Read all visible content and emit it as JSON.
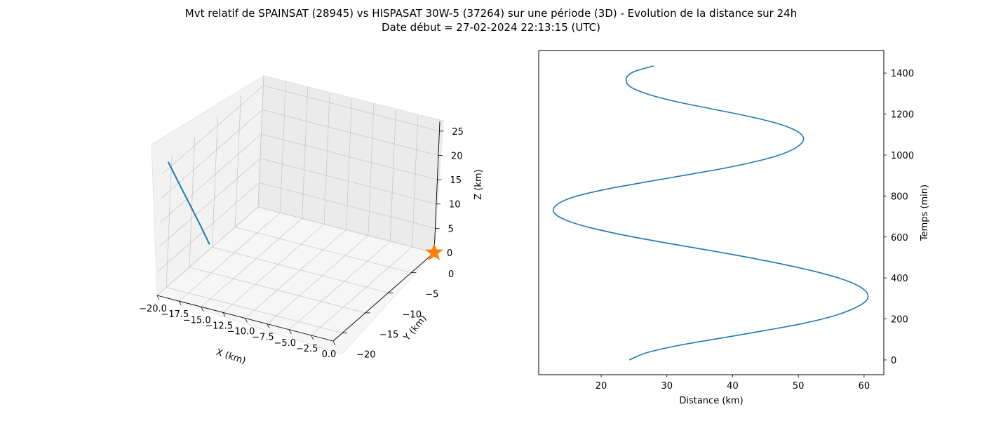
{
  "figure": {
    "title_line1": "Mvt relatif de SPAINSAT (28945) vs HISPASAT 30W-5 (37264) sur une période (3D) - Evolution de la distance sur 24h",
    "title_line2": "Date début = 27-02-2024 22:13:15 (UTC)"
  },
  "chart_data": [
    {
      "type": "line3d",
      "xlabel": "X (km)",
      "ylabel": "Y (km)",
      "zlabel": "Z (km)",
      "xlim": [
        -20,
        0
      ],
      "ylim": [
        -22,
        0
      ],
      "zlim": [
        0,
        27
      ],
      "xticks": [
        "−20.0",
        "−17.5",
        "−15.0",
        "−12.5",
        "−10.0",
        "−7.5",
        "−5.0",
        "−2.5",
        "0.0"
      ],
      "yticks": [
        "0",
        "−5",
        "−10",
        "−15",
        "−20"
      ],
      "zticks": [
        "0",
        "5",
        "10",
        "15",
        "20",
        "25"
      ],
      "series": [
        {
          "points": [
            [
              -20.0,
              -20.8,
              26.5
            ],
            [
              -18.7,
              -20.9,
              23.0
            ],
            [
              -17.3,
              -21.1,
              19.5
            ],
            [
              -15.9,
              -21.3,
              16.0
            ],
            [
              -14.6,
              -21.5,
              12.6
            ]
          ],
          "color": "#1f77b4"
        }
      ],
      "markers": [
        {
          "x": 0,
          "y": 0,
          "z": 0,
          "shape": "star",
          "color": "#ff7f0e"
        }
      ],
      "grid": true
    },
    {
      "type": "line",
      "xlabel": "Distance (km)",
      "ylabel": "Temps (min)",
      "ylabel_position": "right",
      "xlim": [
        10.5,
        63
      ],
      "ylim": [
        -72,
        1510
      ],
      "xticks": [
        20,
        30,
        40,
        50,
        60
      ],
      "yticks": [
        0,
        200,
        400,
        600,
        800,
        1000,
        1200,
        1400
      ],
      "series": [
        {
          "color": "#1f77b4",
          "x": [
            24.3,
            27.0,
            32.0,
            38.5,
            45.0,
            51.0,
            55.5,
            58.5,
            60.3,
            60.5,
            59.2,
            56.5,
            52.5,
            47.5,
            41.8,
            35.5,
            29.0,
            23.0,
            18.0,
            14.5,
            12.8,
            13.2,
            15.5,
            20.0,
            26.0,
            32.5,
            38.8,
            44.0,
            47.8,
            50.0,
            50.8,
            49.8,
            47.0,
            42.5,
            37.0,
            31.5,
            27.2,
            24.5,
            23.8,
            24.8,
            28.0
          ],
          "y": [
            0,
            36,
            72,
            108,
            144,
            180,
            216,
            252,
            288,
            324,
            360,
            396,
            432,
            468,
            504,
            540,
            576,
            612,
            648,
            684,
            720,
            756,
            792,
            828,
            864,
            900,
            936,
            972,
            1008,
            1044,
            1080,
            1116,
            1152,
            1188,
            1224,
            1260,
            1296,
            1332,
            1368,
            1404,
            1435
          ]
        }
      ],
      "grid": false
    }
  ]
}
